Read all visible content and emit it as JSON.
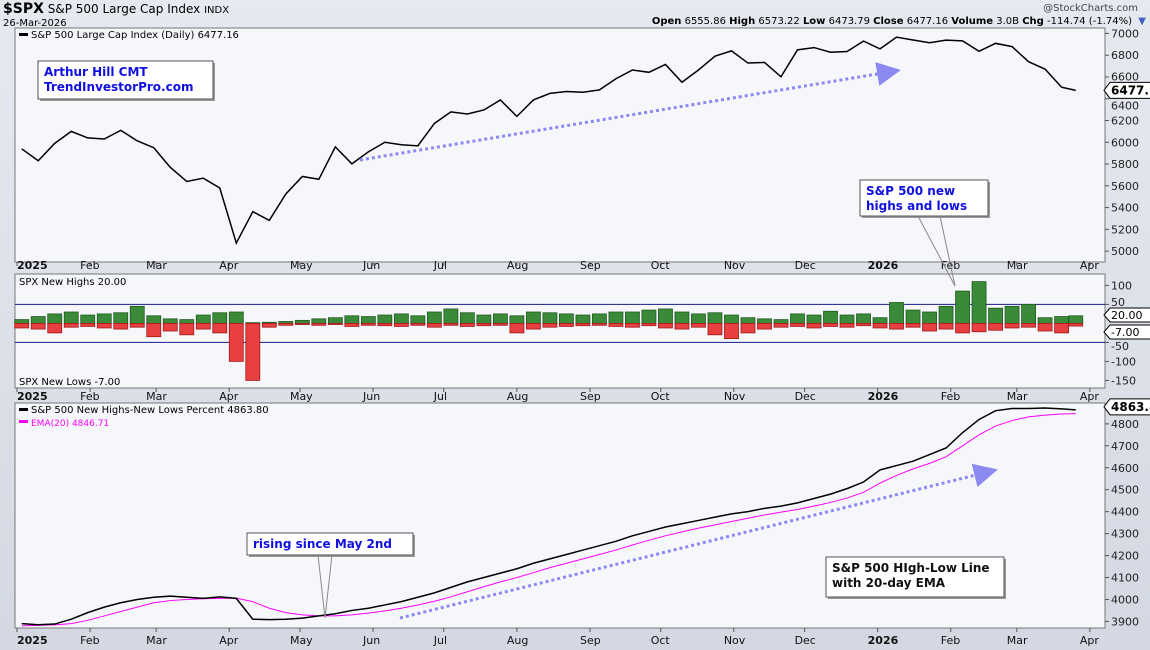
{
  "header": {
    "symbol": "$SPX",
    "name": "S&P 500 Large Cap Index",
    "exchange": "INDX",
    "date": "26-Mar-2026",
    "watermark": "@StockCharts.com",
    "quote": {
      "open_label": "Open",
      "open": "6555.86",
      "high_label": "High",
      "high": "6573.22",
      "low_label": "Low",
      "low": "6473.79",
      "close_label": "Close",
      "close": "6477.16",
      "volume_label": "Volume",
      "volume": "3.0B",
      "chg_label": "Chg",
      "chg": "-114.74 (-1.74%)"
    }
  },
  "chart_data": [
    {
      "type": "line",
      "title": "S&P 500 Large Cap Index (Daily) 6477.16",
      "last_value_label": "6477.16",
      "ylim": [
        4900,
        7050
      ],
      "yticks": [
        5000,
        5200,
        5400,
        5600,
        5800,
        6000,
        6200,
        6400,
        6600,
        6800,
        7000
      ],
      "xtick_labels": [
        "2025",
        "Feb",
        "Mar",
        "Apr",
        "May",
        "Jun",
        "Jul",
        "Aug",
        "Sep",
        "Oct",
        "Nov",
        "Dec",
        "2026",
        "Feb",
        "Mar",
        "Apr"
      ],
      "color": "#000000",
      "annotations": {
        "box": [
          "Arthur Hill CMT",
          "TrendInvestorPro.com"
        ],
        "callout": [
          "S&P 500 new",
          "highs and lows"
        ]
      },
      "arrow_color": "#8a8af0",
      "values": [
        5940,
        5830,
        5990,
        6100,
        6040,
        6030,
        6110,
        6013,
        5950,
        5770,
        5640,
        5670,
        5580,
        5074,
        5363,
        5282,
        5525,
        5686,
        5660,
        5958,
        5802,
        5912,
        6000,
        5977,
        5967,
        6173,
        6279,
        6260,
        6297,
        6389,
        6238,
        6389,
        6449,
        6467,
        6460,
        6481,
        6584,
        6664,
        6643,
        6715,
        6552,
        6664,
        6791,
        6840,
        6728,
        6734,
        6602,
        6849,
        6870,
        6827,
        6834,
        6930,
        6858,
        6966,
        6940,
        6915,
        6939,
        6932,
        6836,
        6909,
        6879,
        6740,
        6672,
        6506,
        6477.16
      ]
    },
    {
      "type": "bar",
      "series": [
        {
          "name": "SPX New Highs 20.00",
          "color": "#3a8a3a",
          "values": [
            10,
            18,
            25,
            30,
            22,
            25,
            28,
            45,
            20,
            12,
            10,
            22,
            28,
            30,
            2,
            3,
            5,
            8,
            12,
            15,
            20,
            18,
            22,
            25,
            20,
            30,
            38,
            28,
            22,
            25,
            20,
            30,
            28,
            25,
            22,
            25,
            30,
            30,
            35,
            38,
            30,
            25,
            28,
            22,
            15,
            12,
            10,
            25,
            22,
            32,
            22,
            25,
            15,
            55,
            35,
            30,
            45,
            85,
            110,
            40,
            45,
            50,
            15,
            18,
            20
          ]
        },
        {
          "name": "SPX New Lows -7.00",
          "color": "#e84040",
          "values": [
            -12,
            -15,
            -25,
            -10,
            -8,
            -12,
            -15,
            -10,
            -35,
            -20,
            -30,
            -15,
            -25,
            -100,
            -150,
            -10,
            -5,
            -3,
            -5,
            -3,
            -8,
            -5,
            -6,
            -8,
            -5,
            -10,
            -5,
            -8,
            -6,
            -5,
            -25,
            -15,
            -10,
            -8,
            -6,
            -5,
            -8,
            -10,
            -6,
            -12,
            -15,
            -10,
            -30,
            -40,
            -25,
            -15,
            -10,
            -8,
            -12,
            -8,
            -10,
            -6,
            -12,
            -15,
            -10,
            -20,
            -15,
            -25,
            -22,
            -18,
            -12,
            -10,
            -20,
            -25,
            -7
          ]
        }
      ],
      "last_value_labels": [
        "20.00",
        "-7.00"
      ],
      "ylim": [
        -170,
        130
      ],
      "yticks": [
        -150,
        -100,
        -50,
        50,
        100
      ],
      "reference_lines": [
        50,
        -50
      ]
    },
    {
      "type": "line",
      "series": [
        {
          "name": "S&P 500 New Highs-New Lows Percent 4863.80",
          "color": "#000000",
          "values": [
            3890,
            3885,
            3888,
            3910,
            3940,
            3965,
            3985,
            4000,
            4010,
            4015,
            4010,
            4005,
            4012,
            4005,
            3910,
            3908,
            3910,
            3915,
            3925,
            3935,
            3950,
            3960,
            3975,
            3990,
            4010,
            4030,
            4055,
            4080,
            4100,
            4120,
            4140,
            4165,
            4185,
            4205,
            4225,
            4245,
            4265,
            4290,
            4310,
            4330,
            4345,
            4360,
            4375,
            4390,
            4400,
            4415,
            4425,
            4440,
            4460,
            4480,
            4505,
            4535,
            4590,
            4610,
            4630,
            4660,
            4690,
            4760,
            4820,
            4860,
            4870,
            4870,
            4872,
            4868,
            4863.8
          ]
        },
        {
          "name": "EMA(20) 4846.71",
          "color": "#ff00ff",
          "values": [
            3880,
            3882,
            3884,
            3890,
            3905,
            3925,
            3945,
            3965,
            3985,
            3995,
            4000,
            4003,
            4005,
            4006,
            3990,
            3960,
            3940,
            3930,
            3925,
            3925,
            3930,
            3938,
            3948,
            3960,
            3975,
            3992,
            4012,
            4035,
            4058,
            4080,
            4100,
            4122,
            4145,
            4165,
            4185,
            4205,
            4225,
            4248,
            4270,
            4290,
            4308,
            4325,
            4340,
            4355,
            4370,
            4385,
            4398,
            4410,
            4425,
            4442,
            4462,
            4488,
            4530,
            4565,
            4595,
            4620,
            4650,
            4700,
            4750,
            4790,
            4815,
            4832,
            4840,
            4845,
            4846.71
          ]
        }
      ],
      "last_value_label": "4863.80",
      "ylim": [
        3870,
        4895
      ],
      "yticks": [
        3900,
        4000,
        4100,
        4200,
        4300,
        4400,
        4500,
        4600,
        4700,
        4800
      ],
      "annotations": {
        "callout": "rising since May 2nd",
        "box": [
          "S&P 500 HIgh-Low Line",
          "with 20-day EMA"
        ]
      }
    }
  ],
  "dates": [
    "2025-01-03",
    "2025-01-10",
    "2025-01-17",
    "2025-01-24",
    "2025-01-31",
    "2025-02-07",
    "2025-02-14",
    "2025-02-21",
    "2025-02-28",
    "2025-03-07",
    "2025-03-14",
    "2025-03-21",
    "2025-03-28",
    "2025-04-04",
    "2025-04-11",
    "2025-04-18",
    "2025-04-25",
    "2025-05-02",
    "2025-05-09",
    "2025-05-16",
    "2025-05-23",
    "2025-05-30",
    "2025-06-06",
    "2025-06-13",
    "2025-06-20",
    "2025-06-27",
    "2025-07-04",
    "2025-07-11",
    "2025-07-18",
    "2025-07-25",
    "2025-08-01",
    "2025-08-08",
    "2025-08-15",
    "2025-08-22",
    "2025-08-29",
    "2025-09-05",
    "2025-09-12",
    "2025-09-19",
    "2025-09-26",
    "2025-10-03",
    "2025-10-10",
    "2025-10-17",
    "2025-10-24",
    "2025-10-31",
    "2025-11-07",
    "2025-11-14",
    "2025-11-21",
    "2025-11-28",
    "2025-12-05",
    "2025-12-12",
    "2025-12-19",
    "2025-12-26",
    "2026-01-02",
    "2026-01-09",
    "2026-01-16",
    "2026-01-23",
    "2026-01-30",
    "2026-02-06",
    "2026-02-13",
    "2026-02-20",
    "2026-02-27",
    "2026-03-06",
    "2026-03-13",
    "2026-03-20",
    "2026-03-26"
  ]
}
